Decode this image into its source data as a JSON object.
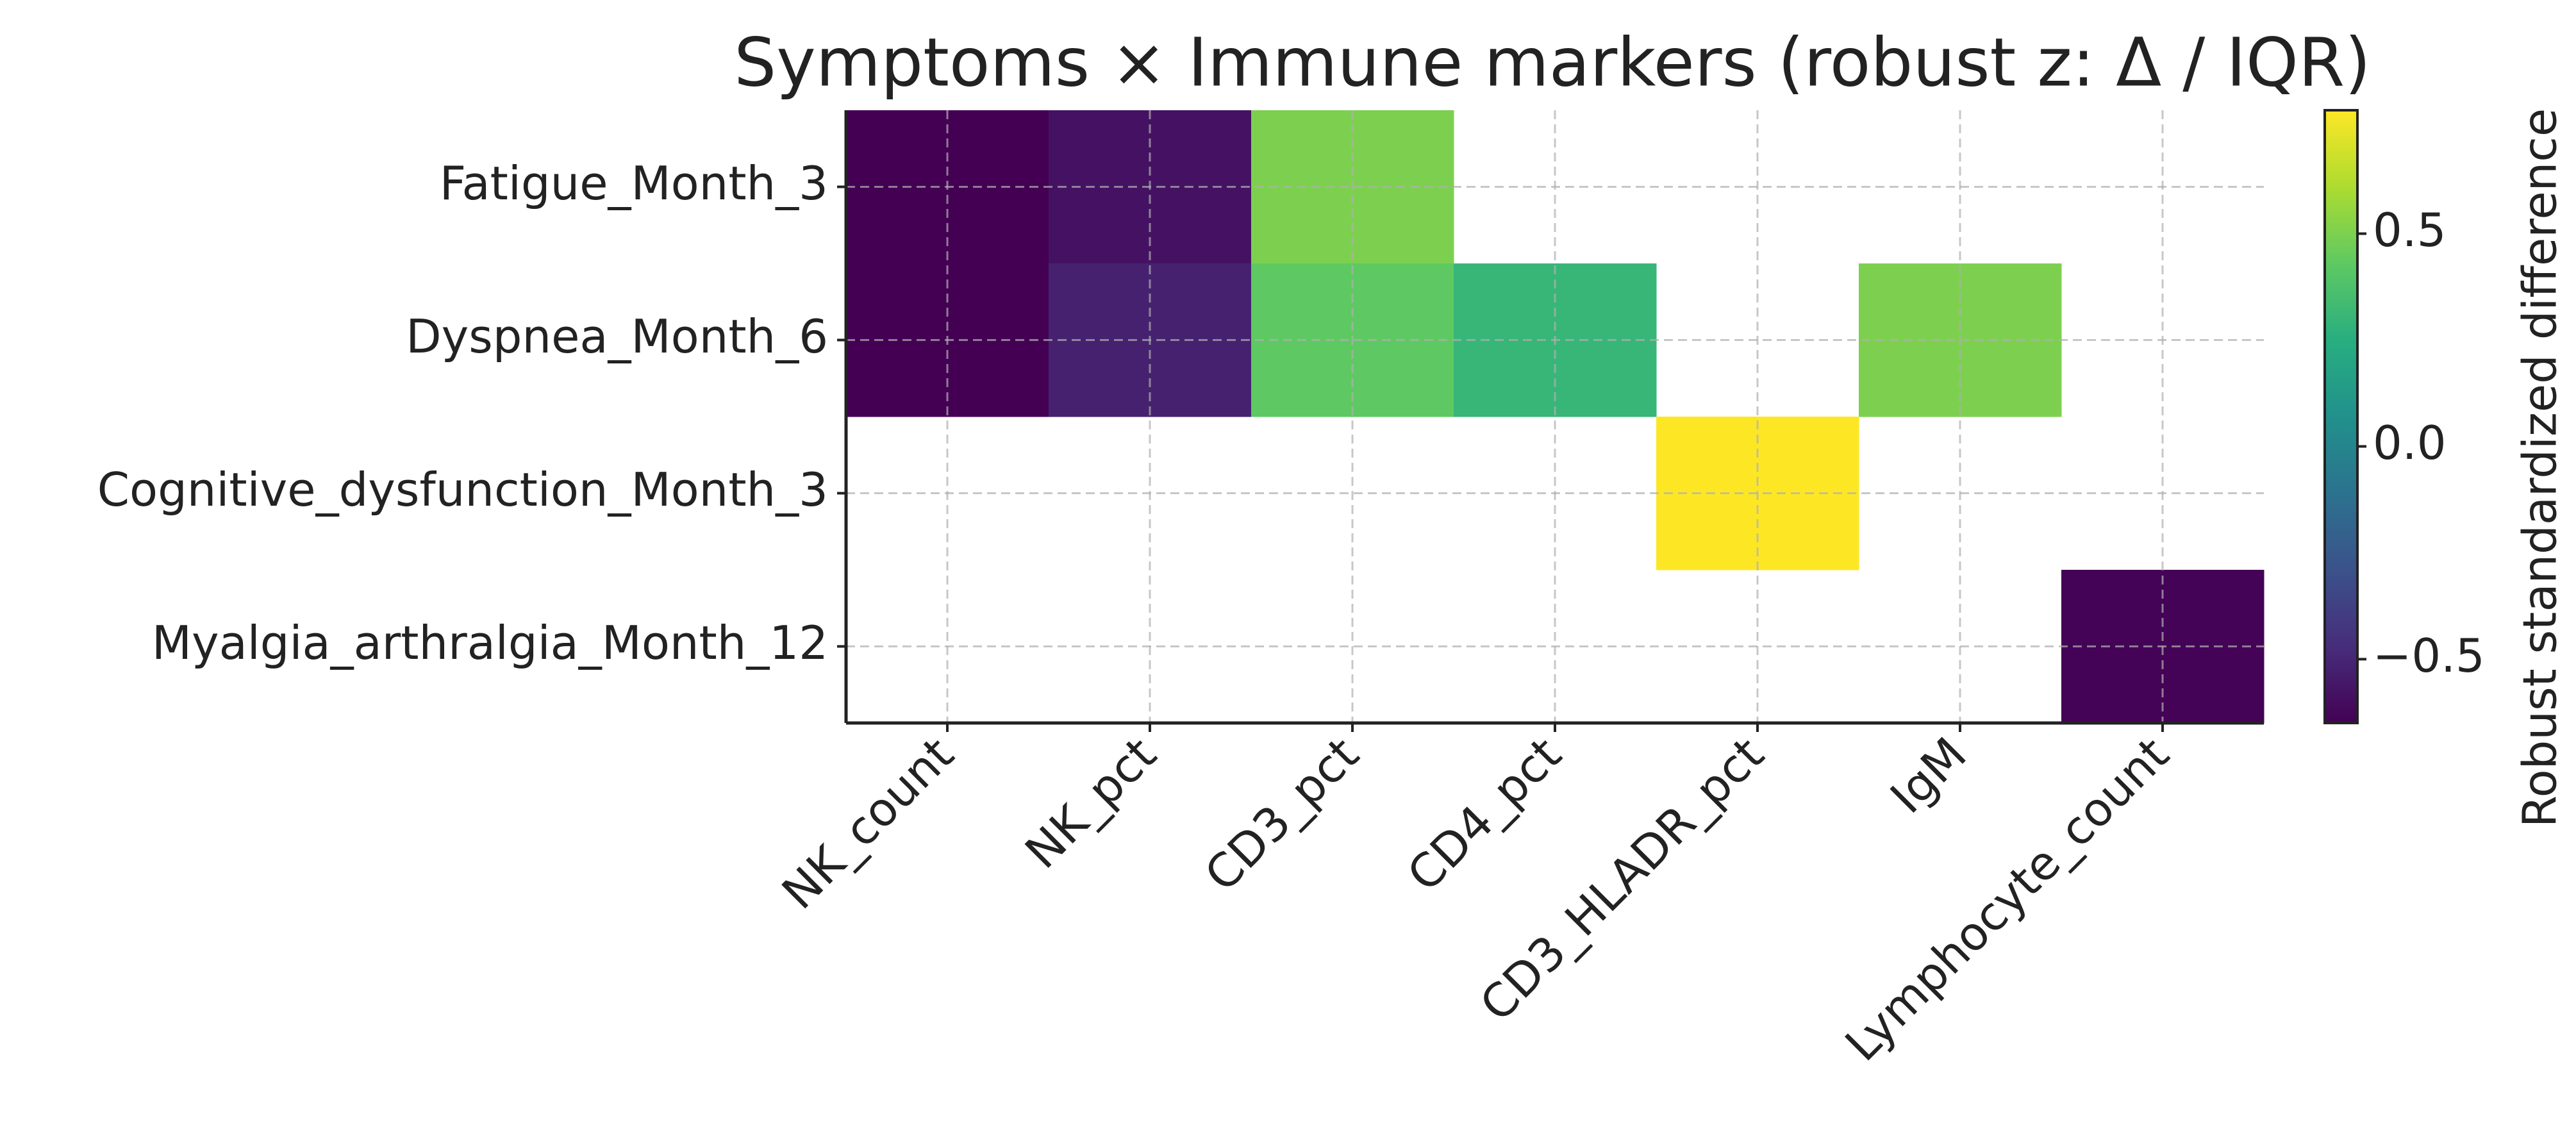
{
  "chart_data": {
    "type": "heatmap",
    "title": "Symptoms × Immune markers (robust z: Δ / IQR)",
    "categories": [
      "NK_count",
      "NK_pct",
      "CD3_pct",
      "CD4_pct",
      "CD3_HLADR_pct",
      "IgM",
      "Lymphocyte_count"
    ],
    "rows": [
      "Fatigue_Month_3",
      "Dyspnea_Month_6",
      "Cognitive_dysfunction_Month_3",
      "Myalgia_arthralgia_Month_12"
    ],
    "values": [
      [
        -0.65,
        -0.58,
        0.5,
        null,
        null,
        null,
        null
      ],
      [
        -0.65,
        -0.52,
        0.43,
        0.3,
        null,
        0.5,
        null
      ],
      [
        null,
        null,
        null,
        null,
        0.79,
        null,
        null
      ],
      [
        null,
        null,
        null,
        null,
        null,
        null,
        -0.64
      ]
    ],
    "colormap": "viridis",
    "clim": [
      -0.65,
      0.79
    ],
    "cticks": [
      {
        "value": -0.5,
        "label": "−0.5"
      },
      {
        "value": 0,
        "label": "0.0"
      },
      0.5
    ],
    "colorbar_label": "Robust standardized difference",
    "grid": true
  }
}
